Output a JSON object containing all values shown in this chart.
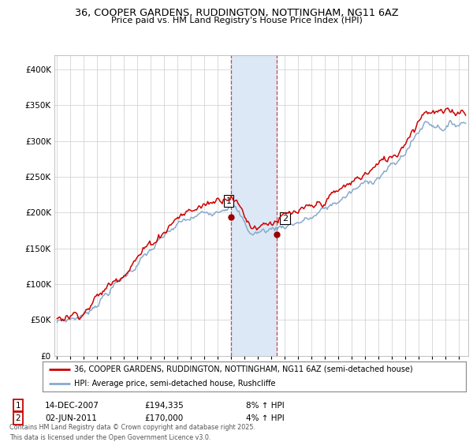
{
  "title1": "36, COOPER GARDENS, RUDDINGTON, NOTTINGHAM, NG11 6AZ",
  "title2": "Price paid vs. HM Land Registry's House Price Index (HPI)",
  "legend_line1": "36, COOPER GARDENS, RUDDINGTON, NOTTINGHAM, NG11 6AZ (semi-detached house)",
  "legend_line2": "HPI: Average price, semi-detached house, Rushcliffe",
  "footnote": "Contains HM Land Registry data © Crown copyright and database right 2025.\nThis data is licensed under the Open Government Licence v3.0.",
  "annotation1": {
    "label": "1",
    "date": "14-DEC-2007",
    "price": "£194,335",
    "hpi": "8% ↑ HPI"
  },
  "annotation2": {
    "label": "2",
    "date": "02-JUN-2011",
    "price": "£170,000",
    "hpi": "4% ↑ HPI"
  },
  "sale1_year": 2007.96,
  "sale1_price": 194335,
  "sale2_year": 2011.42,
  "sale2_price": 170000,
  "line_color_price": "#cc0000",
  "line_color_hpi": "#88aacc",
  "shade_color": "#dce8f5",
  "background_color": "#ffffff",
  "grid_color": "#cccccc",
  "yticks": [
    0,
    50000,
    100000,
    150000,
    200000,
    250000,
    300000,
    350000,
    400000
  ],
  "ylim": [
    0,
    420000
  ],
  "xlim_start": 1994.8,
  "xlim_end": 2025.7
}
